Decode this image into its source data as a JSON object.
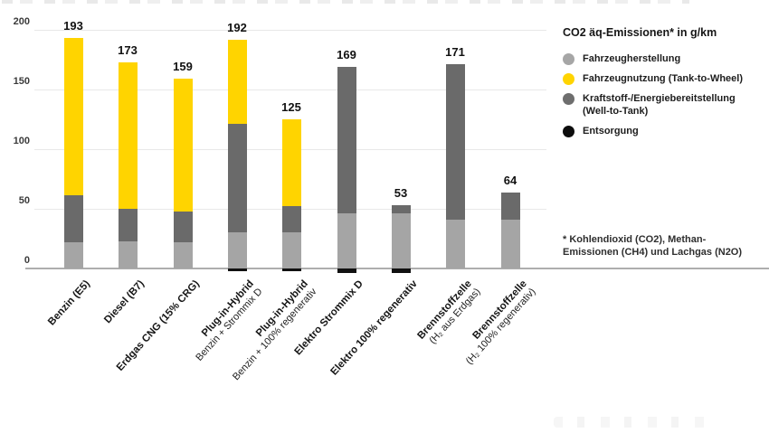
{
  "page": {
    "background": "#ffffff"
  },
  "chart_data": {
    "type": "bar",
    "stacked": true,
    "title": "CO2 äq-Emissionen* in g/km",
    "xlabel": "",
    "ylabel": "CO2 äq-Emissionen in g/km",
    "ylim": [
      0,
      200
    ],
    "yticks": [
      0,
      50,
      100,
      150,
      200
    ],
    "grid": true,
    "legend_position": "right",
    "categories": [
      {
        "line1": "Benzin (E5)",
        "line2": ""
      },
      {
        "line1": "Diesel (B7)",
        "line2": ""
      },
      {
        "line1": "Erdgas CNG (15% CRG)",
        "line2": ""
      },
      {
        "line1": "Plug-in-Hybrid",
        "line2": "Benzin + Strommix D"
      },
      {
        "line1": "Plug-in-Hybrid",
        "line2": "Benzin + 100% regenerativ"
      },
      {
        "line1": "Elektro Strommix D",
        "line2": ""
      },
      {
        "line1": "Elektro 100% regenerativ",
        "line2": ""
      },
      {
        "line1": "Brennstoffzelle",
        "line2": "(H₂ aus Erdgas)"
      },
      {
        "line1": "Brennstoffzelle",
        "line2": "(H₂ 100% regenerativ)"
      }
    ],
    "totals": [
      193,
      173,
      159,
      192,
      125,
      169,
      53,
      171,
      64
    ],
    "series": [
      {
        "name": "Fahrzeugherstellung",
        "color": "#a5a5a5",
        "values": [
          22,
          23,
          22,
          30,
          30,
          46,
          46,
          41,
          41
        ]
      },
      {
        "name": "Kraftstoff-/Energiebereitstellung (Well-to-Tank)",
        "color": "#6a6a6a",
        "values": [
          39,
          27,
          26,
          91,
          22,
          123,
          7,
          130,
          23
        ]
      },
      {
        "name": "Fahrzeugnutzung (Tank-to-Wheel)",
        "color": "#ffd400",
        "values": [
          132,
          123,
          111,
          71,
          73,
          0,
          0,
          0,
          0
        ]
      },
      {
        "name": "Entsorgung",
        "color": "#111111",
        "below_axis": true,
        "values": [
          0,
          0,
          0,
          2,
          2,
          4,
          4,
          0,
          0
        ]
      }
    ]
  },
  "legend": {
    "title": "CO2 äq-Emissionen* in g/km",
    "items": [
      {
        "label": "Fahrzeugherstellung",
        "color": "#a6a6a6"
      },
      {
        "label": "Fahrzeugnutzung (Tank-to-Wheel)",
        "color": "#ffd400"
      },
      {
        "label": "Kraftstoff-/Energiebereitstellung (Well-to-Tank)",
        "color": "#6e6e6e"
      },
      {
        "label": "Entsorgung",
        "color": "#0d0d0d"
      }
    ]
  },
  "footnote": {
    "line1": "* Kohlendioxid (CO2), Methan-",
    "line2": "Emissionen (CH4) und Lachgas (N2O)"
  }
}
